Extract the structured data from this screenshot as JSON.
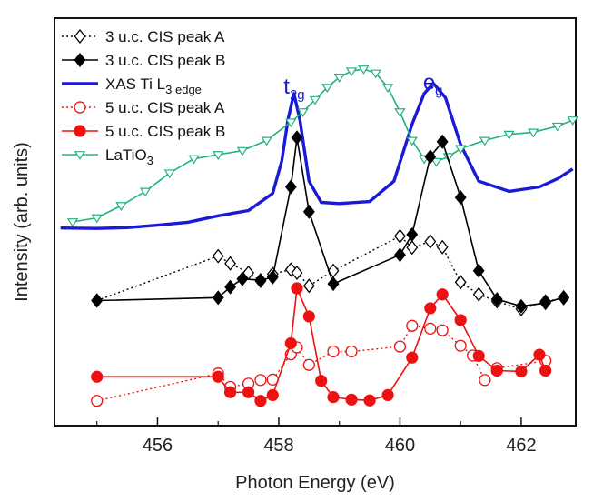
{
  "chart_data": {
    "type": "line",
    "title": "",
    "xlabel": "Photon Energy (eV)",
    "ylabel": "Intensity (arb. units)",
    "xlim": [
      454.3,
      462.9
    ],
    "ylim": [
      0,
      1
    ],
    "x_ticks": [
      456,
      458,
      460,
      462
    ],
    "x_tick_labels": [
      "456",
      "458",
      "460",
      "462"
    ],
    "grid": false,
    "legend_position": "top-left",
    "annotations": [
      {
        "name": "t2g-annotation",
        "main": "t",
        "sub": "2g",
        "x": 458.2,
        "y": 0.815,
        "color": "#1a1ad6"
      },
      {
        "name": "eg-annotation",
        "main": "e",
        "sub": "g",
        "x": 460.5,
        "y": 0.825,
        "color": "#1a1ad6"
      }
    ],
    "series": [
      {
        "name": "3-uc-peak-a",
        "label": "3 u.c. CIS peak A",
        "color": "#000000",
        "line": "dotted",
        "marker": "diamond-open",
        "x": [
          455.0,
          457.0,
          457.2,
          457.5,
          457.7,
          457.9,
          458.2,
          458.3,
          458.5,
          458.9,
          460.0,
          460.2,
          460.5,
          460.7,
          461.0,
          461.3,
          461.6,
          462.0,
          462.4,
          462.7
        ],
        "y": [
          0.307,
          0.416,
          0.398,
          0.375,
          0.355,
          0.372,
          0.383,
          0.375,
          0.343,
          0.38,
          0.465,
          0.437,
          0.452,
          0.438,
          0.352,
          0.322,
          0.305,
          0.286,
          0.305,
          0.313
        ]
      },
      {
        "name": "3-uc-peak-b",
        "label": "3 u.c. CIS peak B",
        "color": "#000000",
        "line": "solid",
        "marker": "diamond",
        "x": [
          455.0,
          457.0,
          457.2,
          457.4,
          457.7,
          457.9,
          458.2,
          458.3,
          458.5,
          458.9,
          460.0,
          460.2,
          460.5,
          460.7,
          461.0,
          461.3,
          461.6,
          462.0,
          462.4,
          462.7
        ],
        "y": [
          0.307,
          0.314,
          0.34,
          0.36,
          0.357,
          0.364,
          0.586,
          0.707,
          0.525,
          0.348,
          0.419,
          0.469,
          0.66,
          0.697,
          0.56,
          0.38,
          0.31,
          0.293,
          0.301,
          0.315
        ]
      },
      {
        "name": "xas-ti-l3",
        "label": "XAS Ti L3 edge",
        "color": "#1a1ad6",
        "line": "solid-thick",
        "marker": "none",
        "x": [
          454.4,
          455.0,
          455.5,
          456.0,
          456.5,
          457.0,
          457.5,
          457.9,
          458.05,
          458.15,
          458.25,
          458.35,
          458.5,
          458.7,
          459.0,
          459.5,
          459.9,
          460.2,
          460.4,
          460.55,
          460.75,
          461.0,
          461.3,
          461.8,
          462.3,
          462.6,
          462.85
        ],
        "y": [
          0.485,
          0.484,
          0.486,
          0.492,
          0.499,
          0.515,
          0.528,
          0.57,
          0.65,
          0.75,
          0.815,
          0.75,
          0.6,
          0.548,
          0.545,
          0.55,
          0.6,
          0.74,
          0.815,
          0.84,
          0.805,
          0.69,
          0.6,
          0.575,
          0.586,
          0.606,
          0.63
        ]
      },
      {
        "name": "5-uc-peak-a",
        "label": "5 u.c. CIS peak A",
        "color": "#ee1111",
        "line": "dotted",
        "marker": "circle-open",
        "x": [
          455.0,
          457.0,
          457.2,
          457.5,
          457.7,
          457.9,
          458.2,
          458.3,
          458.5,
          458.9,
          459.2,
          460.0,
          460.2,
          460.5,
          460.7,
          461.0,
          461.2,
          461.4,
          461.6,
          462.4
        ],
        "y": [
          0.061,
          0.128,
          0.095,
          0.103,
          0.112,
          0.113,
          0.175,
          0.192,
          0.149,
          0.182,
          0.182,
          0.194,
          0.245,
          0.238,
          0.234,
          0.196,
          0.172,
          0.112,
          0.141,
          0.159
        ]
      },
      {
        "name": "5-uc-peak-b",
        "label": "5 u.c. CIS peak B",
        "color": "#ee1111",
        "line": "solid",
        "marker": "circle",
        "x": [
          455.0,
          457.0,
          457.2,
          457.5,
          457.7,
          457.9,
          458.2,
          458.3,
          458.5,
          458.7,
          458.9,
          459.2,
          459.5,
          459.8,
          460.2,
          460.5,
          460.7,
          461.0,
          461.3,
          461.6,
          462.0,
          462.3,
          462.4
        ],
        "y": [
          0.12,
          0.12,
          0.082,
          0.082,
          0.061,
          0.075,
          0.202,
          0.337,
          0.268,
          0.11,
          0.07,
          0.064,
          0.062,
          0.075,
          0.167,
          0.288,
          0.322,
          0.259,
          0.171,
          0.135,
          0.133,
          0.174,
          0.135
        ]
      },
      {
        "name": "latio3",
        "label": "LaTiO3",
        "color": "#22b37a",
        "line": "solid",
        "marker": "triangle-down-open",
        "x": [
          454.6,
          455.0,
          455.4,
          455.8,
          456.2,
          456.6,
          457.0,
          457.4,
          457.8,
          458.2,
          458.4,
          458.6,
          458.8,
          459.0,
          459.2,
          459.4,
          459.6,
          459.8,
          460.0,
          460.2,
          460.4,
          460.6,
          460.8,
          461.0,
          461.4,
          461.8,
          462.2,
          462.6,
          462.85
        ],
        "y": [
          0.5,
          0.51,
          0.54,
          0.575,
          0.62,
          0.655,
          0.665,
          0.675,
          0.7,
          0.745,
          0.77,
          0.8,
          0.83,
          0.855,
          0.87,
          0.875,
          0.865,
          0.83,
          0.77,
          0.7,
          0.655,
          0.648,
          0.66,
          0.68,
          0.7,
          0.715,
          0.72,
          0.735,
          0.75
        ]
      }
    ]
  }
}
